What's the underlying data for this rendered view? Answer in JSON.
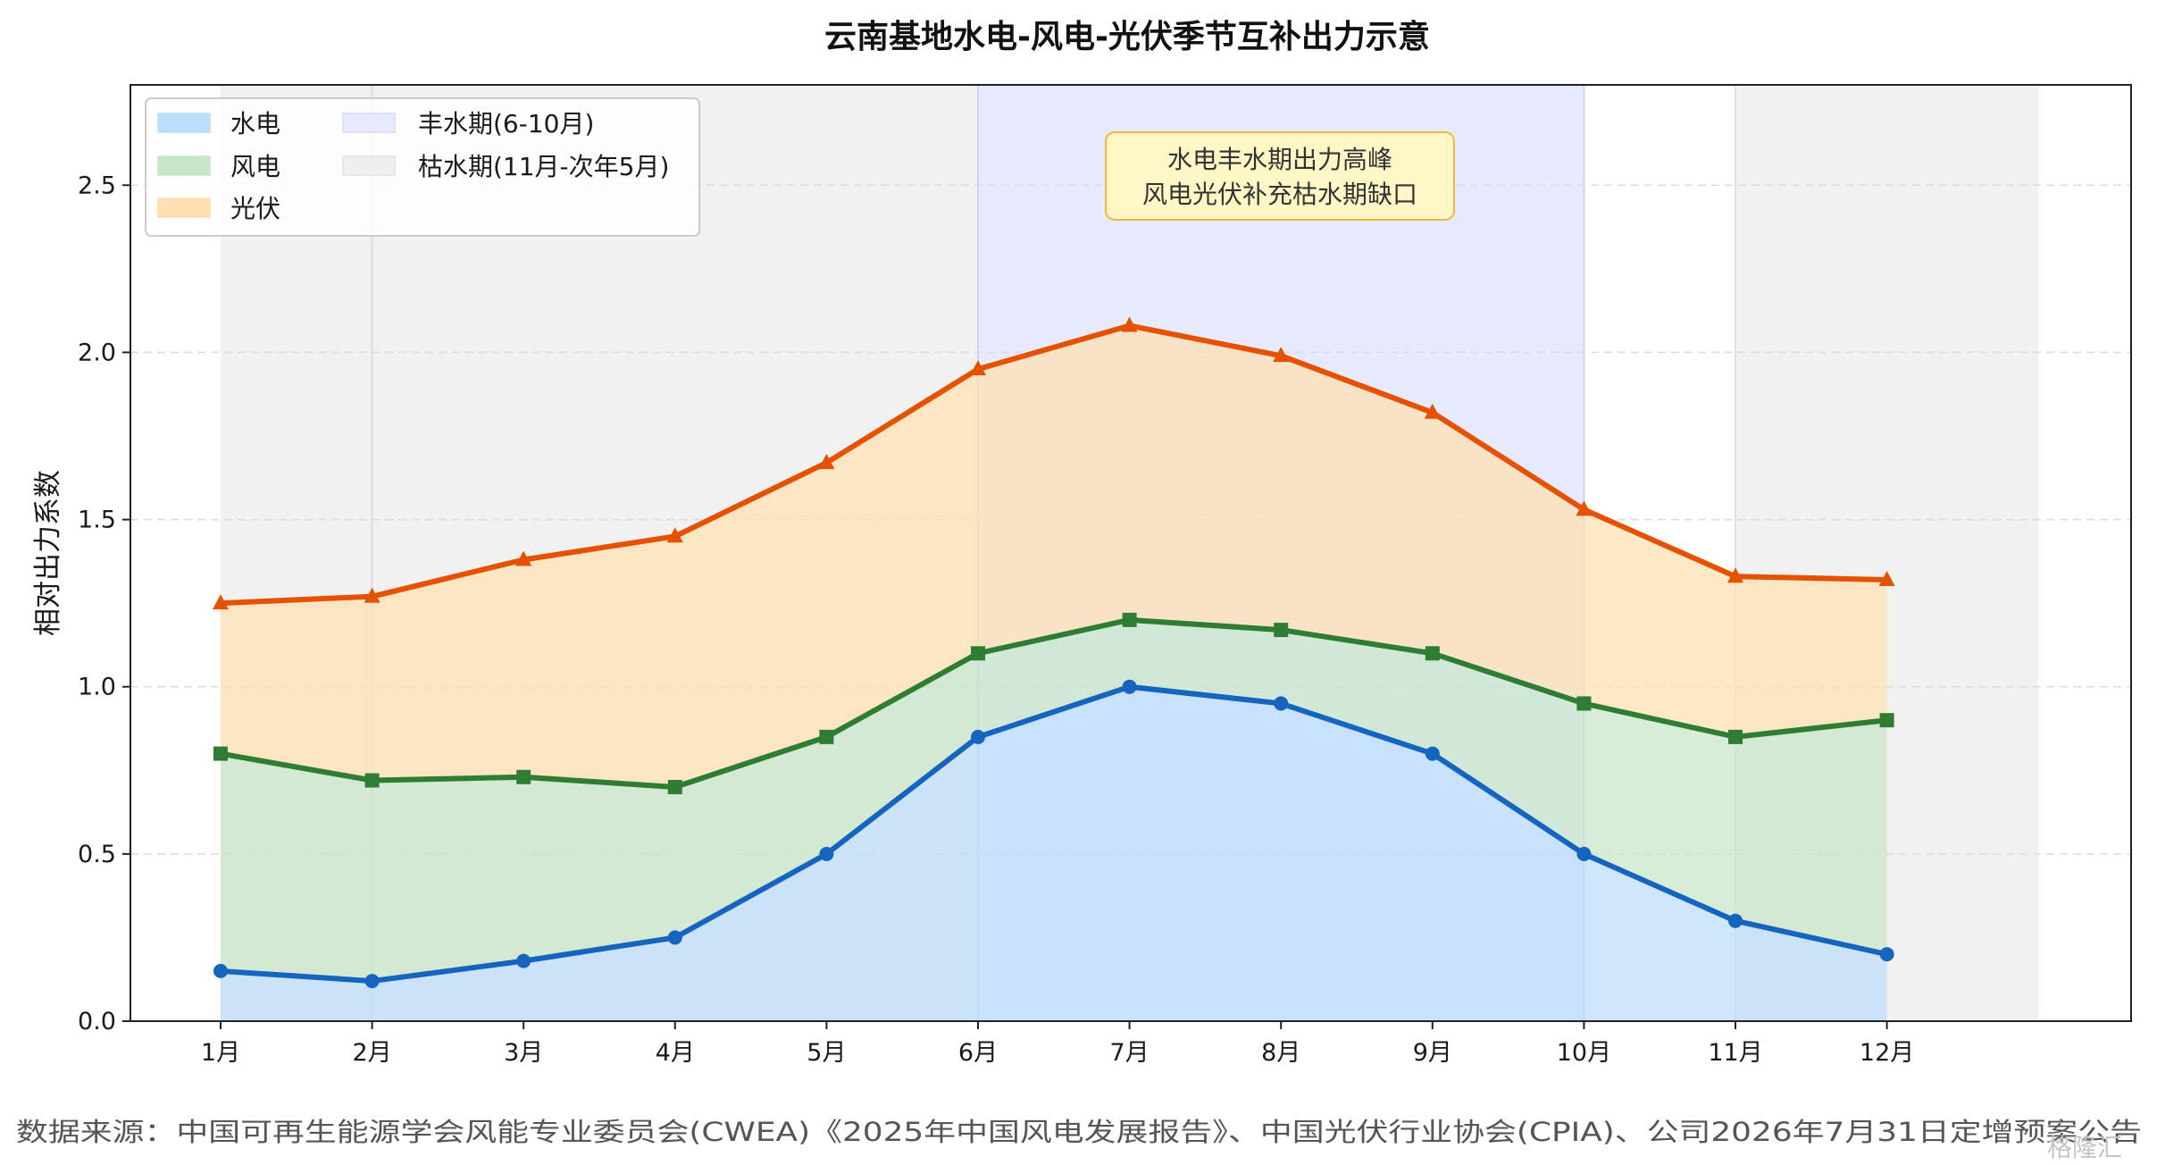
{
  "chart_data": {
    "type": "area",
    "title": "云南基地水电-风电-光伏季节互补出力示意",
    "ylabel": "相对出力系数",
    "xlabel": "",
    "categories": [
      "1月",
      "2月",
      "3月",
      "4月",
      "5月",
      "6月",
      "7月",
      "8月",
      "9月",
      "10月",
      "11月",
      "12月"
    ],
    "ylim": [
      0,
      2.8
    ],
    "yticks": [
      "0.0",
      "0.5",
      "1.0",
      "1.5",
      "2.0",
      "2.5"
    ],
    "grid": "horizontal dashed",
    "legend_position": "top-left",
    "series": [
      {
        "name": "水电",
        "marker": "circle",
        "color": "#1565c0",
        "fill": "#bbdefb",
        "values": [
          0.15,
          0.12,
          0.18,
          0.25,
          0.5,
          0.85,
          1.0,
          0.95,
          0.8,
          0.5,
          0.3,
          0.2
        ]
      },
      {
        "name": "风电",
        "marker": "square",
        "color": "#2e7d32",
        "fill": "#c8e6c9",
        "values": [
          0.8,
          0.72,
          0.73,
          0.7,
          0.85,
          1.1,
          1.2,
          1.17,
          1.1,
          0.95,
          0.85,
          0.9
        ]
      },
      {
        "name": "光伏",
        "marker": "triangle",
        "color": "#e65100",
        "fill": "#ffe0b2",
        "values": [
          1.25,
          1.27,
          1.38,
          1.45,
          1.67,
          1.95,
          2.08,
          1.99,
          1.82,
          1.53,
          1.33,
          1.32
        ]
      }
    ],
    "periods": [
      {
        "name": "丰水期(6-10月)",
        "color": "#e8eafe"
      },
      {
        "name": "枯水期(11月-次年5月)",
        "color": "#f0f0f0"
      }
    ],
    "annotation": [
      "水电丰水期出力高峰",
      "风电光伏补充枯水期缺口"
    ]
  },
  "source": "数据来源：中国可再生能源学会风能专业委员会(CWEA)《2025年中国风电发展报告》、中国光伏行业协会(CPIA)、公司2026年7月31日定增预案公告",
  "watermark": "格隆汇"
}
